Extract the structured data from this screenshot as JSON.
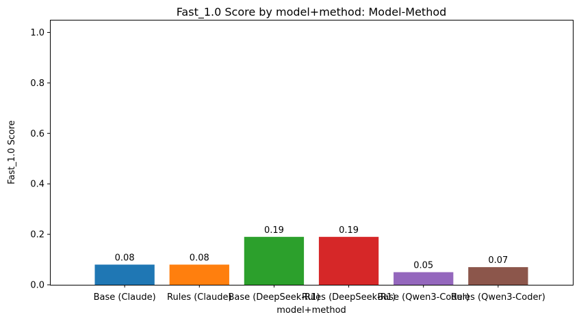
{
  "chart_data": {
    "type": "bar",
    "title": "Fast_1.0 Score by model+method: Model-Method",
    "xlabel": "model+method",
    "ylabel": "Fast_1.0 Score",
    "ylim": [
      0,
      1.05
    ],
    "yticks": [
      0.0,
      0.2,
      0.4,
      0.6,
      0.8,
      1.0
    ],
    "ytick_labels": [
      "0.0",
      "0.2",
      "0.4",
      "0.6",
      "0.8",
      "1.0"
    ],
    "categories": [
      "Base (Claude)",
      "Rules (Claude)",
      "Base (DeepSeek-R1)",
      "Rules (DeepSeek-R1)",
      "Base (Qwen3-Coder)",
      "Rules (Qwen3-Coder)"
    ],
    "values": [
      0.08,
      0.08,
      0.19,
      0.19,
      0.05,
      0.07
    ],
    "value_labels": [
      "0.08",
      "0.08",
      "0.19",
      "0.19",
      "0.05",
      "0.07"
    ],
    "colors": [
      "#1f77b4",
      "#ff7f0e",
      "#2ca02c",
      "#d62728",
      "#9467bd",
      "#8c564b"
    ],
    "grid": false,
    "legend": "none"
  }
}
